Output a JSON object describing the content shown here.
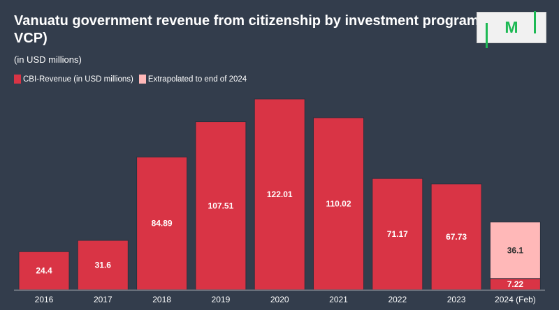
{
  "chart_data": {
    "type": "bar",
    "title": "Vanuatu government revenue from citizenship by investment program and VCP)",
    "subtitle": "(in USD millions)",
    "categories": [
      "2016",
      "2017",
      "2018",
      "2019",
      "2020",
      "2021",
      "2022",
      "2023",
      "2024 (Feb)"
    ],
    "series": [
      {
        "name": "CBI-Revenue (in USD millions)",
        "color": "#d93445",
        "values": [
          24.4,
          31.6,
          84.89,
          107.51,
          122.01,
          110.02,
          71.17,
          67.73,
          7.22
        ]
      },
      {
        "name": "Extrapolated to end of 2024",
        "color": "#ffb8b8",
        "values": [
          null,
          null,
          null,
          null,
          null,
          null,
          null,
          null,
          36.1
        ]
      }
    ],
    "stacked": true,
    "legend": "top-left",
    "grid": false,
    "ylim": [
      0,
      122.01
    ]
  },
  "logo": {
    "text": "M",
    "color": "#1db954"
  }
}
